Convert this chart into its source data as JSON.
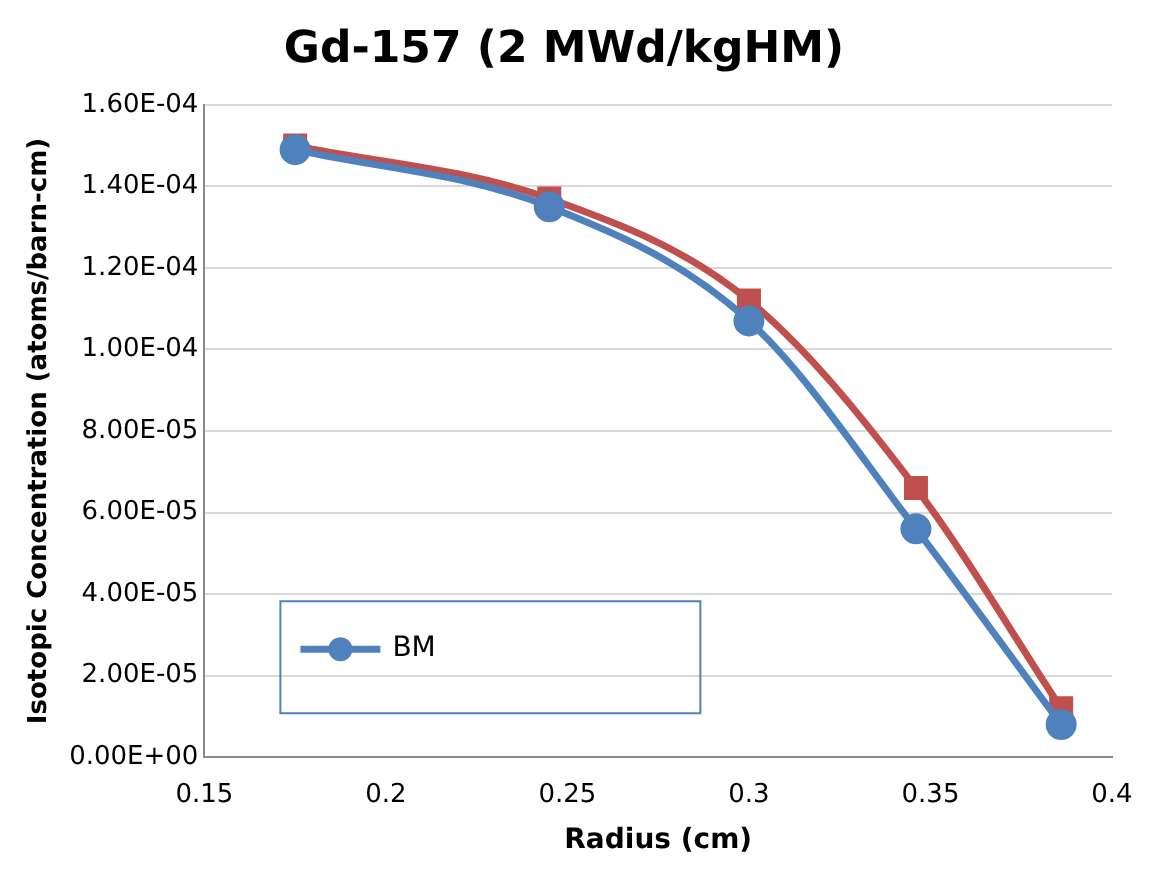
{
  "chart_data": {
    "type": "line",
    "title": "Gd-157 (2 MWd/kgHM)",
    "xlabel": "Radius (cm)",
    "ylabel": "Isotopic Concentration (atoms/barn-cm)",
    "x": [
      0.175,
      0.245,
      0.3,
      0.346,
      0.386
    ],
    "series": [
      {
        "name": "BM",
        "color": "#4f81bd",
        "marker": "circle",
        "values": [
          0.000149,
          0.000135,
          0.000107,
          5.6e-05,
          8e-06
        ]
      },
      {
        "color": "#c0504d",
        "marker": "square",
        "values": [
          0.00015,
          0.000137,
          0.000112,
          6.6e-05,
          1.2e-05
        ]
      }
    ],
    "xlim": [
      0.15,
      0.4
    ],
    "xticks": [
      0.15,
      0.2,
      0.25,
      0.3,
      0.35,
      0.4
    ],
    "ylim": [
      0,
      0.00016
    ],
    "yticks": [
      {
        "value": 0,
        "label": "0.00E+00"
      },
      {
        "value": 2e-05,
        "label": "2.00E-05"
      },
      {
        "value": 4e-05,
        "label": "4.00E-05"
      },
      {
        "value": 6e-05,
        "label": "6.00E-05"
      },
      {
        "value": 8e-05,
        "label": "8.00E-05"
      },
      {
        "value": 0.0001,
        "label": "1.00E-04"
      },
      {
        "value": 0.00012,
        "label": "1.20E-04"
      },
      {
        "value": 0.00014,
        "label": "1.40E-04"
      },
      {
        "value": 0.00016,
        "label": "1.60E-04"
      }
    ],
    "grid": "y",
    "legend": "bottom left"
  }
}
